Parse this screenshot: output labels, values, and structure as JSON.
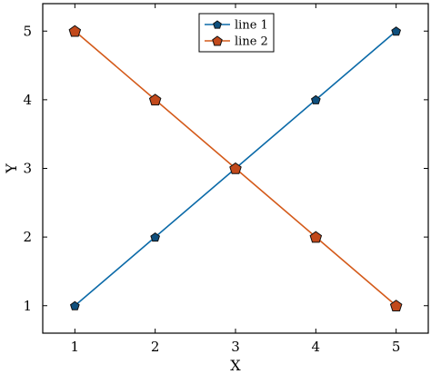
{
  "chart_data": {
    "type": "line",
    "xlabel": "X",
    "ylabel": "Y",
    "x": [
      1,
      2,
      3,
      4,
      5
    ],
    "xticks": [
      1,
      2,
      3,
      4,
      5
    ],
    "yticks": [
      1,
      2,
      3,
      4,
      5
    ],
    "xlim": [
      0.6,
      5.4
    ],
    "ylim": [
      0.6,
      5.4
    ],
    "grid": false,
    "legend_position": "top-center",
    "marker": "pentagon",
    "series": [
      {
        "name": "line 1",
        "values": [
          1,
          2,
          3,
          4,
          5
        ],
        "color": "#0b6aa8",
        "marker_fill": "#0e4f7d"
      },
      {
        "name": "line 2",
        "values": [
          5,
          4,
          3,
          2,
          1
        ],
        "color": "#d45a1a",
        "marker_fill": "#c2491b"
      }
    ]
  }
}
